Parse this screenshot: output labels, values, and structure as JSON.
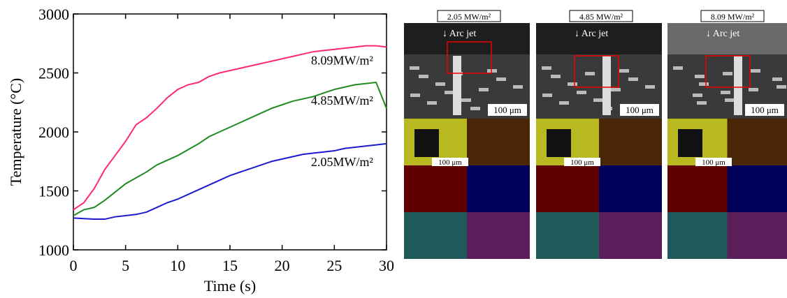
{
  "chart_data": {
    "type": "line",
    "xlabel": "Time (s)",
    "ylabel": "Temperature (°C)",
    "x": [
      0,
      1,
      2,
      3,
      4,
      5,
      6,
      7,
      8,
      9,
      10,
      11,
      12,
      13,
      14,
      15,
      16,
      17,
      18,
      19,
      20,
      21,
      22,
      23,
      24,
      25,
      26,
      27,
      28,
      29,
      30
    ],
    "series": [
      {
        "name": "8.09MW/m²",
        "color": "#ff2a6d",
        "values": [
          1340,
          1400,
          1520,
          1680,
          1800,
          1920,
          2060,
          2120,
          2200,
          2290,
          2360,
          2400,
          2420,
          2470,
          2500,
          2520,
          2540,
          2560,
          2580,
          2600,
          2620,
          2640,
          2660,
          2680,
          2690,
          2700,
          2710,
          2720,
          2730,
          2730,
          2720
        ]
      },
      {
        "name": "4.85MW/m²",
        "color": "#1f8a1f",
        "values": [
          1290,
          1340,
          1360,
          1420,
          1490,
          1560,
          1610,
          1660,
          1720,
          1760,
          1800,
          1850,
          1900,
          1960,
          2000,
          2040,
          2080,
          2120,
          2160,
          2200,
          2230,
          2260,
          2280,
          2300,
          2330,
          2360,
          2380,
          2400,
          2410,
          2420,
          2200
        ]
      },
      {
        "name": "2.05MW/m²",
        "color": "#1a1ad0",
        "values": [
          1270,
          1265,
          1260,
          1260,
          1280,
          1290,
          1300,
          1320,
          1360,
          1400,
          1430,
          1470,
          1510,
          1550,
          1590,
          1630,
          1660,
          1690,
          1720,
          1750,
          1770,
          1790,
          1810,
          1820,
          1830,
          1840,
          1860,
          1870,
          1880,
          1890,
          1900
        ]
      }
    ],
    "xlim": [
      0,
      30
    ],
    "xticks": [
      0,
      5,
      10,
      15,
      20,
      25,
      30
    ],
    "ylim": [
      1000,
      3000
    ],
    "yticks": [
      1000,
      1500,
      2000,
      2500,
      3000
    ]
  },
  "panels": [
    {
      "label": "2.05 MW/m²",
      "arrow": "↓ Arc jet",
      "scale": "100 μm",
      "map_scale": "100 μm"
    },
    {
      "label": "4.85 MW/m²",
      "arrow": "↓ Arc jet",
      "scale": "100 μm",
      "map_scale": "100 μm"
    },
    {
      "label": "8.09 MW/m²",
      "arrow": "↓ Arc jet",
      "scale": "100 μm",
      "map_scale": "100 μm"
    }
  ]
}
